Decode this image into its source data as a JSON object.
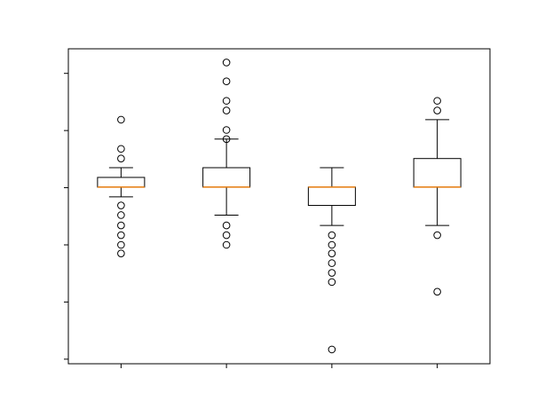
{
  "chart_data": {
    "type": "box",
    "categories": [
      null,
      null,
      null,
      null
    ],
    "boxes": [
      {
        "whislo": 2.84,
        "q1": 3.01,
        "med": 3.01,
        "q3": 3.18,
        "whishi": 3.35,
        "fliers": [
          4.19,
          3.68,
          3.51,
          2.69,
          2.52,
          2.34,
          2.17,
          2.0,
          1.85
        ]
      },
      {
        "whislo": 2.52,
        "q1": 3.01,
        "med": 3.01,
        "q3": 3.35,
        "whishi": 3.85,
        "fliers": [
          5.19,
          4.86,
          4.52,
          4.35,
          4.01,
          3.85,
          2.34,
          2.17,
          2.0
        ]
      },
      {
        "whislo": 2.34,
        "q1": 2.69,
        "med": 3.01,
        "q3": 3.01,
        "whishi": 3.35,
        "fliers": [
          2.17,
          2.0,
          1.85,
          1.68,
          1.51,
          1.35,
          0.17
        ]
      },
      {
        "whislo": 2.34,
        "q1": 3.01,
        "med": 3.01,
        "q3": 3.51,
        "whishi": 4.19,
        "fliers": [
          4.52,
          4.35,
          2.17,
          1.18
        ]
      }
    ],
    "box_color": "#000000",
    "median_color": "#e87d0d",
    "ylim": [
      -0.08,
      5.43
    ],
    "yticks": [
      0,
      1,
      2,
      3,
      4,
      5
    ]
  }
}
